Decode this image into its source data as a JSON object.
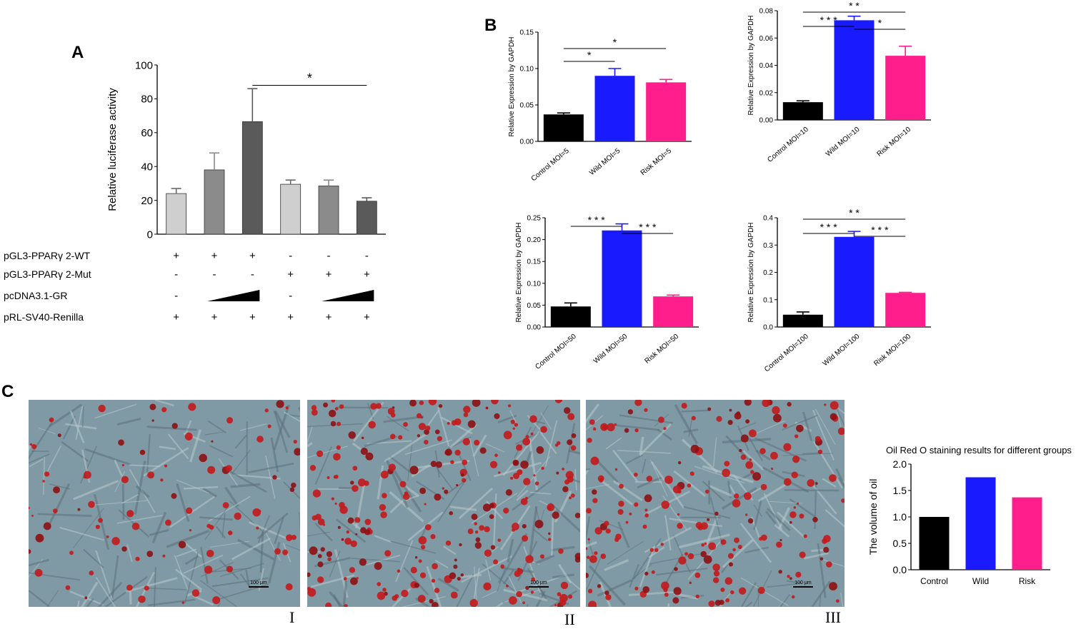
{
  "panel_labels": {
    "a": "A",
    "b": "B",
    "c": "C"
  },
  "colors": {
    "light_gray": "#cfcfcf",
    "mid_gray": "#8b8b8b",
    "dark_gray": "#5a5a5a",
    "black": "#000000",
    "blue": "#1a1aff",
    "pink": "#ff1e8c",
    "oil_red": "#c4191b"
  },
  "chart_data": [
    {
      "id": "A",
      "type": "bar",
      "ylabel": "Relative luciferase activity",
      "ylim": [
        0,
        100
      ],
      "yticks": [
        "0",
        "20",
        "40",
        "60",
        "80",
        "100"
      ],
      "values": [
        24,
        38,
        66.5,
        29.5,
        28.5,
        19.5
      ],
      "errors": [
        3,
        10,
        19.5,
        2.5,
        3.5,
        2
      ],
      "bar_colors": [
        "#cfcfcf",
        "#8b8b8b",
        "#5a5a5a",
        "#cfcfcf",
        "#8b8b8b",
        "#5a5a5a"
      ],
      "significance": [
        {
          "label": "*"
        }
      ],
      "conditions": [
        {
          "name": "pGL3-PPARγ 2-WT",
          "marks": [
            "+",
            "+",
            "+",
            "-",
            "-",
            "-"
          ]
        },
        {
          "name": "pGL3-PPARγ 2-Mut",
          "marks": [
            "-",
            "-",
            "-",
            "+",
            "+",
            "+"
          ]
        },
        {
          "name": "pcDNA3.1-GR",
          "marks": [
            "-",
            "ramp",
            "",
            "-",
            "ramp",
            ""
          ]
        },
        {
          "name": "pRL-SV40-Renilla",
          "marks": [
            "+",
            "+",
            "+",
            "+",
            "+",
            "+"
          ]
        }
      ]
    },
    {
      "id": "B1",
      "type": "bar",
      "ylabel": "Relative Expression by GAPDH",
      "ylim": [
        0,
        0.15
      ],
      "yticks": [
        "0.00",
        "0.05",
        "0.10",
        "0.15"
      ],
      "categories": [
        "Control MOI=5",
        "Wild MOI=5",
        "Risk MOI=5"
      ],
      "values": [
        0.037,
        0.09,
        0.081
      ],
      "errors": [
        0.002,
        0.01,
        0.004
      ],
      "bar_colors": [
        "#000000",
        "#1a1aff",
        "#ff1e8c"
      ],
      "significance": [
        {
          "label": "*"
        },
        {
          "label": "*"
        }
      ]
    },
    {
      "id": "B2",
      "type": "bar",
      "ylabel": "Relative Expression by GAPDH",
      "ylim": [
        0,
        0.08
      ],
      "yticks": [
        "0.00",
        "0.02",
        "0.04",
        "0.06",
        "0.08"
      ],
      "categories": [
        "Control MOI=10",
        "Wild MOI=10",
        "Risk MOI=10"
      ],
      "values": [
        0.013,
        0.073,
        0.047
      ],
      "errors": [
        0.001,
        0.003,
        0.007
      ],
      "bar_colors": [
        "#000000",
        "#1a1aff",
        "#ff1e8c"
      ],
      "significance": [
        {
          "label": "* * *"
        },
        {
          "label": "*"
        },
        {
          "label": "* *"
        }
      ]
    },
    {
      "id": "B3",
      "type": "bar",
      "ylabel": "Relative Expression by GAPDH",
      "ylim": [
        0,
        0.25
      ],
      "yticks": [
        "0.00",
        "0.05",
        "0.10",
        "0.15",
        "0.20",
        "0.25"
      ],
      "categories": [
        "Control MOI=50",
        "Wild MOI=50",
        "Risk MOI=50"
      ],
      "values": [
        0.047,
        0.221,
        0.07
      ],
      "errors": [
        0.008,
        0.015,
        0.003
      ],
      "bar_colors": [
        "#000000",
        "#1a1aff",
        "#ff1e8c"
      ],
      "significance": [
        {
          "label": "* * *"
        },
        {
          "label": "* * *"
        }
      ]
    },
    {
      "id": "B4",
      "type": "bar",
      "ylabel": "Relative Expression by GAPDH",
      "ylim": [
        0,
        0.4
      ],
      "yticks": [
        "0.0",
        "0.1",
        "0.2",
        "0.3",
        "0.4"
      ],
      "categories": [
        "Control MOI=100",
        "Wild MOI=100",
        "Risk MOI=100"
      ],
      "values": [
        0.045,
        0.33,
        0.125
      ],
      "errors": [
        0.01,
        0.02,
        0.002
      ],
      "bar_colors": [
        "#000000",
        "#1a1aff",
        "#ff1e8c"
      ],
      "significance": [
        {
          "label": "* * *"
        },
        {
          "label": "* * *"
        },
        {
          "label": "* *"
        }
      ]
    },
    {
      "id": "C_chart",
      "type": "bar",
      "title": "Oil Red O staining results for different groups",
      "ylabel": "The volume of oil",
      "ylim": [
        0,
        2.0
      ],
      "yticks": [
        "0.0",
        "0.5",
        "1.0",
        "1.5",
        "2.0"
      ],
      "categories": [
        "Control",
        "Wild",
        "Risk"
      ],
      "values": [
        1.0,
        1.75,
        1.37
      ],
      "bar_colors": [
        "#000000",
        "#1a1aff",
        "#ff1e8c"
      ]
    }
  ],
  "micrographs": [
    {
      "roman": "I",
      "scale_label": "100 μm",
      "density": 90
    },
    {
      "roman": "II",
      "scale_label": "100 μm",
      "density": 260
    },
    {
      "roman": "III",
      "scale_label": "100 μm",
      "density": 190
    }
  ]
}
